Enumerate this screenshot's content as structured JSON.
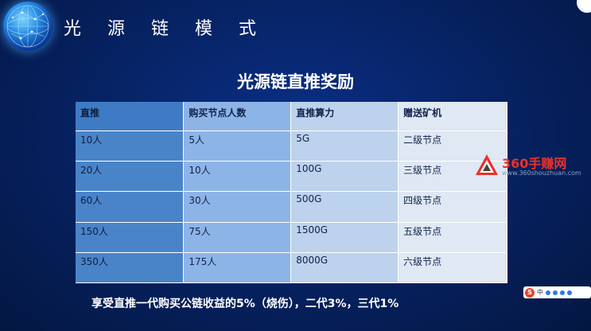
{
  "header": {
    "title": "光 源 链 模 式"
  },
  "main": {
    "title": "光源链直推奖励"
  },
  "table": {
    "headers": [
      "直推",
      "购买节点人数",
      "直推算力",
      "赠送矿机"
    ],
    "rows": [
      [
        "10人",
        "5人",
        "5G",
        "二级节点"
      ],
      [
        "20人",
        "10人",
        "100G",
        "三级节点"
      ],
      [
        "60人",
        "30人",
        "500G",
        "四级节点"
      ],
      [
        "150人",
        "75人",
        "1500G",
        "五级节点"
      ],
      [
        "350人",
        "175人",
        "8000G",
        "六级节点"
      ]
    ]
  },
  "note": "享受直推一代购买公链收益的5%（烧伤），二代3%，三代1%",
  "watermark": {
    "name": "360手赚网",
    "url": "www.360shouzhuan.com"
  },
  "ime": {
    "logo": "S",
    "label": "中"
  },
  "colors": {
    "background": "#06215f",
    "col1": "#4a84c8",
    "col2": "#8db4e6",
    "col3": "#bdd2ec",
    "col4": "#dfe8f3",
    "watermark_red": "#e8322c"
  }
}
